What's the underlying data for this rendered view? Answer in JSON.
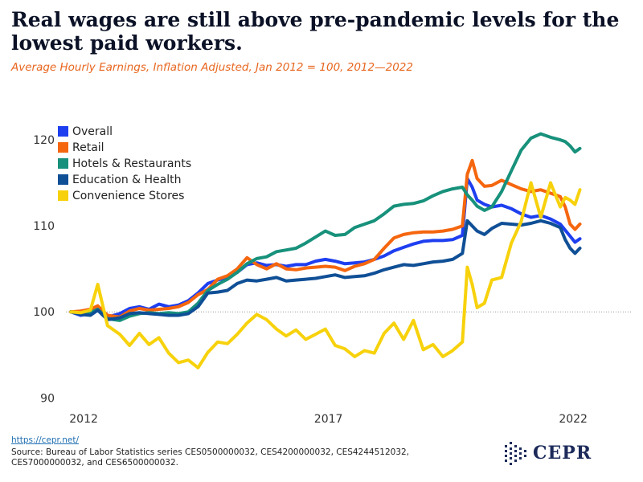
{
  "header": {
    "title": "Real wages are still above pre-pandemic levels for the lowest paid workers.",
    "subtitle": "Average Hourly Earnings, Inflation Adjusted, Jan 2012 = 100, 2012—2022"
  },
  "footer": {
    "link": "https://cepr.net/",
    "source": "Source: Bureau of Labor Statistics series CES0500000032, CES4200000032, CES4244512032, CES7000000032, and CES6500000032."
  },
  "logo": {
    "text": "CEPR",
    "brand_color": "#1c2a5a"
  },
  "chart_data": {
    "type": "line",
    "title": "Real wages are still above pre-pandemic levels for the lowest paid workers.",
    "subtitle": "Average Hourly Earnings, Inflation Adjusted, Jan 2012 = 100, 2012—2022",
    "xlabel": "",
    "ylabel": "",
    "x_ticks": [
      2012,
      2017,
      2022
    ],
    "xlim": [
      2011.9,
      2022.95
    ],
    "y_ticks": [
      90,
      100,
      110,
      120
    ],
    "ylim": [
      89,
      123
    ],
    "reference_line": 100,
    "grid": false,
    "legend_position": "top-left",
    "series": [
      {
        "name": "Overall",
        "color": "#1e3ff0",
        "x": [
          2012.0,
          2012.2,
          2012.4,
          2012.55,
          2012.75,
          2013.0,
          2013.2,
          2013.4,
          2013.6,
          2013.8,
          2014.0,
          2014.2,
          2014.4,
          2014.6,
          2014.8,
          2015.0,
          2015.2,
          2015.4,
          2015.6,
          2015.8,
          2016.0,
          2016.2,
          2016.4,
          2016.6,
          2016.8,
          2017.0,
          2017.2,
          2017.4,
          2017.6,
          2017.8,
          2018.0,
          2018.2,
          2018.4,
          2018.6,
          2018.8,
          2019.0,
          2019.2,
          2019.4,
          2019.6,
          2019.8,
          2020.0,
          2020.1,
          2020.2,
          2020.3,
          2020.45,
          2020.6,
          2020.8,
          2021.0,
          2021.2,
          2021.4,
          2021.6,
          2021.8,
          2022.0,
          2022.1,
          2022.2,
          2022.3,
          2022.4
        ],
        "y": [
          100,
          99.6,
          99.8,
          100.6,
          99.4,
          99.8,
          100.4,
          100.6,
          100.3,
          100.9,
          100.6,
          100.8,
          101.3,
          102.2,
          103.3,
          103.7,
          104.0,
          104.6,
          105.5,
          105.7,
          105.4,
          105.5,
          105.3,
          105.5,
          105.5,
          105.9,
          106.1,
          105.9,
          105.6,
          105.7,
          105.8,
          106.1,
          106.5,
          107.1,
          107.5,
          107.9,
          108.2,
          108.3,
          108.3,
          108.4,
          108.9,
          115.5,
          114.5,
          113.0,
          112.5,
          112.2,
          112.4,
          112.0,
          111.4,
          111.0,
          111.2,
          110.8,
          110.2,
          109.5,
          108.8,
          108.1,
          108.5
        ]
      },
      {
        "name": "Retail",
        "color": "#f5660e",
        "x": [
          2012.0,
          2012.2,
          2012.4,
          2012.55,
          2012.75,
          2013.0,
          2013.2,
          2013.4,
          2013.6,
          2013.8,
          2014.0,
          2014.2,
          2014.4,
          2014.6,
          2014.8,
          2015.0,
          2015.2,
          2015.4,
          2015.6,
          2015.8,
          2016.0,
          2016.2,
          2016.4,
          2016.6,
          2016.8,
          2017.0,
          2017.2,
          2017.4,
          2017.6,
          2017.8,
          2018.0,
          2018.2,
          2018.4,
          2018.6,
          2018.8,
          2019.0,
          2019.2,
          2019.4,
          2019.6,
          2019.8,
          2020.0,
          2020.1,
          2020.2,
          2020.3,
          2020.45,
          2020.6,
          2020.8,
          2021.0,
          2021.2,
          2021.4,
          2021.6,
          2021.8,
          2022.0,
          2022.1,
          2022.2,
          2022.3,
          2022.4
        ],
        "y": [
          100,
          100.1,
          100.3,
          100.7,
          99.6,
          99.4,
          100.1,
          100.4,
          100.2,
          100.3,
          100.4,
          100.6,
          101.1,
          102.0,
          102.6,
          103.8,
          104.2,
          105.0,
          106.3,
          105.5,
          105.0,
          105.6,
          105.0,
          104.9,
          105.1,
          105.2,
          105.3,
          105.2,
          104.8,
          105.3,
          105.6,
          106.1,
          107.4,
          108.6,
          109.0,
          109.2,
          109.3,
          109.3,
          109.4,
          109.6,
          110.0,
          116.0,
          117.6,
          115.5,
          114.6,
          114.7,
          115.3,
          114.8,
          114.3,
          114.0,
          114.2,
          113.8,
          113.4,
          112.2,
          110.2,
          109.6,
          110.2
        ]
      },
      {
        "name": "Hotels & Restaurants",
        "color": "#17917b",
        "x": [
          2012.0,
          2012.2,
          2012.4,
          2012.55,
          2012.75,
          2013.0,
          2013.2,
          2013.4,
          2013.6,
          2013.8,
          2014.0,
          2014.2,
          2014.4,
          2014.6,
          2014.8,
          2015.0,
          2015.2,
          2015.4,
          2015.6,
          2015.8,
          2016.0,
          2016.2,
          2016.4,
          2016.6,
          2016.8,
          2017.0,
          2017.2,
          2017.4,
          2017.6,
          2017.8,
          2018.0,
          2018.2,
          2018.4,
          2018.6,
          2018.8,
          2019.0,
          2019.2,
          2019.4,
          2019.6,
          2019.8,
          2020.0,
          2020.1,
          2020.2,
          2020.3,
          2020.45,
          2020.6,
          2020.8,
          2021.0,
          2021.2,
          2021.4,
          2021.6,
          2021.8,
          2022.0,
          2022.1,
          2022.2,
          2022.3,
          2022.4
        ],
        "y": [
          100,
          99.8,
          99.9,
          100.3,
          99.2,
          99.0,
          99.5,
          99.8,
          99.9,
          99.8,
          99.9,
          99.8,
          100.0,
          101.0,
          102.5,
          103.2,
          103.8,
          104.6,
          105.6,
          106.2,
          106.4,
          107.0,
          107.2,
          107.4,
          108.0,
          108.7,
          109.4,
          108.9,
          109.0,
          109.8,
          110.2,
          110.6,
          111.4,
          112.3,
          112.5,
          112.6,
          112.9,
          113.5,
          114.0,
          114.3,
          114.5,
          113.6,
          113.0,
          112.3,
          111.8,
          112.2,
          114.0,
          116.4,
          118.8,
          120.2,
          120.7,
          120.3,
          120.0,
          119.8,
          119.3,
          118.6,
          119.0
        ]
      },
      {
        "name": "Education & Health",
        "color": "#0f4f96",
        "x": [
          2012.0,
          2012.2,
          2012.4,
          2012.55,
          2012.75,
          2013.0,
          2013.2,
          2013.4,
          2013.6,
          2013.8,
          2014.0,
          2014.2,
          2014.4,
          2014.6,
          2014.8,
          2015.0,
          2015.2,
          2015.4,
          2015.6,
          2015.8,
          2016.0,
          2016.2,
          2016.4,
          2016.6,
          2016.8,
          2017.0,
          2017.2,
          2017.4,
          2017.6,
          2017.8,
          2018.0,
          2018.2,
          2018.4,
          2018.6,
          2018.8,
          2019.0,
          2019.2,
          2019.4,
          2019.6,
          2019.8,
          2020.0,
          2020.1,
          2020.2,
          2020.3,
          2020.45,
          2020.6,
          2020.8,
          2021.0,
          2021.2,
          2021.4,
          2021.6,
          2021.8,
          2022.0,
          2022.1,
          2022.2,
          2022.3,
          2022.4
        ],
        "y": [
          100,
          99.7,
          99.6,
          100.2,
          99.1,
          99.3,
          99.8,
          99.9,
          99.8,
          99.7,
          99.6,
          99.6,
          99.8,
          100.6,
          102.2,
          102.3,
          102.5,
          103.3,
          103.7,
          103.6,
          103.8,
          104.0,
          103.6,
          103.7,
          103.8,
          103.9,
          104.1,
          104.3,
          104.0,
          104.1,
          104.2,
          104.5,
          104.9,
          105.2,
          105.5,
          105.4,
          105.6,
          105.8,
          105.9,
          106.1,
          106.8,
          110.6,
          110.0,
          109.4,
          109.0,
          109.7,
          110.3,
          110.2,
          110.1,
          110.3,
          110.6,
          110.3,
          109.8,
          108.4,
          107.4,
          106.8,
          107.4
        ]
      },
      {
        "name": "Convenience Stores",
        "color": "#f7d20c",
        "x": [
          2012.0,
          2012.2,
          2012.4,
          2012.55,
          2012.75,
          2013.0,
          2013.2,
          2013.4,
          2013.6,
          2013.8,
          2014.0,
          2014.2,
          2014.4,
          2014.6,
          2014.8,
          2015.0,
          2015.2,
          2015.4,
          2015.6,
          2015.8,
          2016.0,
          2016.2,
          2016.4,
          2016.6,
          2016.8,
          2017.0,
          2017.2,
          2017.4,
          2017.6,
          2017.8,
          2018.0,
          2018.2,
          2018.4,
          2018.6,
          2018.8,
          2019.0,
          2019.2,
          2019.4,
          2019.6,
          2019.8,
          2020.0,
          2020.1,
          2020.2,
          2020.3,
          2020.45,
          2020.6,
          2020.8,
          2021.0,
          2021.2,
          2021.4,
          2021.6,
          2021.8,
          2022.0,
          2022.1,
          2022.2,
          2022.3,
          2022.4
        ],
        "y": [
          100,
          99.9,
          100.2,
          103.2,
          98.4,
          97.4,
          96.1,
          97.5,
          96.2,
          97.0,
          95.2,
          94.1,
          94.4,
          93.5,
          95.3,
          96.5,
          96.3,
          97.4,
          98.7,
          99.7,
          99.1,
          98.0,
          97.2,
          97.9,
          96.8,
          97.4,
          98.0,
          96.1,
          95.7,
          94.8,
          95.5,
          95.2,
          97.5,
          98.7,
          96.8,
          99.0,
          95.6,
          96.2,
          94.8,
          95.5,
          96.5,
          105.2,
          103.2,
          100.5,
          101.0,
          103.7,
          104.0,
          108.0,
          110.5,
          115.0,
          111.0,
          115.0,
          112.2,
          113.3,
          113.0,
          112.5,
          114.2
        ]
      }
    ]
  }
}
